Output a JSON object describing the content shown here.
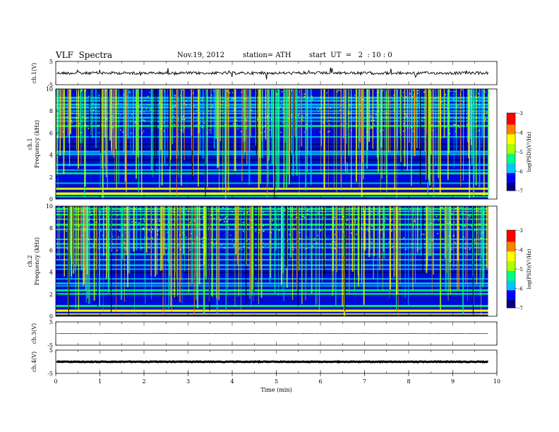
{
  "header": {
    "title": "VLF  Spectra",
    "date": "Nov.19, 2012",
    "station": "station= ATH",
    "start_ut": "start  UT  =   2  : 10 : 0"
  },
  "chart_data": [
    {
      "type": "line",
      "title": "",
      "ylabel": "ch.1(V)",
      "ylim": [
        -5,
        5
      ],
      "yticks": [
        "5",
        "-5"
      ],
      "trace_level": 0,
      "trace_noise": "high",
      "color": "#000000"
    },
    {
      "type": "heatmap",
      "ylabel": "ch.1\nFrequency (kHz)",
      "ylim": [
        0,
        10
      ],
      "yticks": [
        "0",
        "2",
        "4",
        "6",
        "8",
        "10"
      ],
      "colorbar": {
        "label": "log(PSD)(V²/Hz)",
        "range": [
          -7,
          -3
        ],
        "ticks": [
          "-3",
          "-4",
          "-5",
          "-6",
          "-7"
        ]
      }
    },
    {
      "type": "heatmap",
      "ylabel": "ch.2\nFrequency (kHz)",
      "ylim": [
        0,
        10
      ],
      "yticks": [
        "0",
        "2",
        "4",
        "6",
        "8",
        "10"
      ],
      "colorbar": {
        "label": "log(PSD)(V²/Hz)",
        "range": [
          -7,
          -3
        ],
        "ticks": [
          "-3",
          "-4",
          "-5",
          "-6",
          "-7"
        ]
      }
    },
    {
      "type": "line",
      "ylabel": "ch.3(V)",
      "ylim": [
        -5,
        5
      ],
      "yticks": [
        "5",
        "-5"
      ],
      "trace_level": 0,
      "trace_noise": "low",
      "color": "#000000"
    },
    {
      "type": "line",
      "ylabel": "ch.4(V)",
      "ylim": [
        -5,
        5
      ],
      "yticks": [
        "5",
        "-5"
      ],
      "trace_level": 0,
      "trace_noise": "thick",
      "color": "#000000"
    }
  ],
  "x_axis": {
    "label": "Time  (min)",
    "range": [
      0,
      10
    ],
    "ticks": [
      "0",
      "1",
      "2",
      "3",
      "4",
      "5",
      "6",
      "7",
      "8",
      "9",
      "10"
    ],
    "data_end": 9.8
  },
  "colors": {
    "psd_scale": [
      "#000080",
      "#0000ff",
      "#00c8ff",
      "#00ff80",
      "#aaff00",
      "#ffff00",
      "#ff8000",
      "#ff0000",
      "#ffffff"
    ]
  }
}
